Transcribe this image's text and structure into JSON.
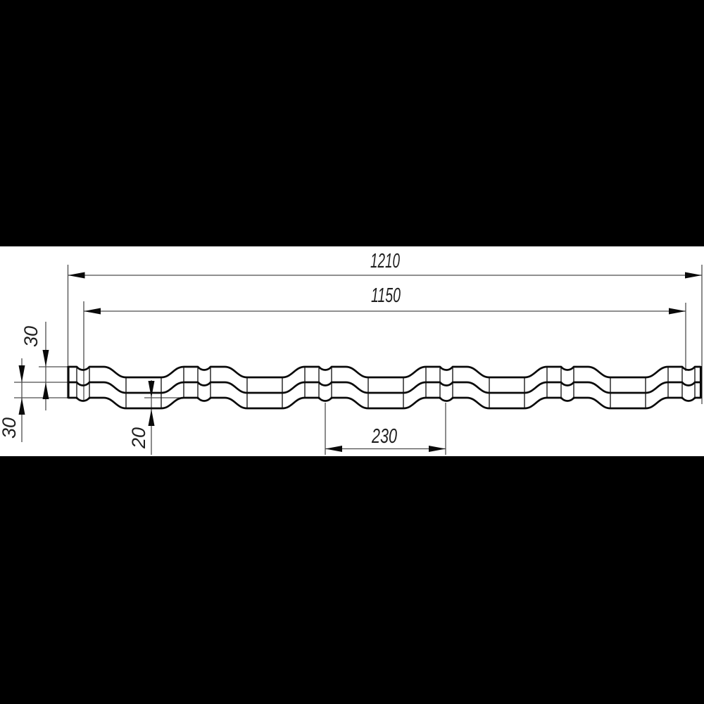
{
  "drawing": {
    "kind": "roof-sheet-profile-cross-section",
    "dimensions": {
      "overall_width": "1210",
      "effective_width": "1150",
      "wave_pitch": "230",
      "wave_height_upper": "30",
      "wave_height_lower": "30",
      "step_height": "20"
    },
    "colors": {
      "background": "#000000",
      "paper": "#ffffff",
      "profile_line": "#0a0a0a",
      "bend_line": "#1c1c1c",
      "dimension_line": "#4d4d4d",
      "arrow": "#0a0a0a",
      "text": "#1f1f1f"
    }
  }
}
